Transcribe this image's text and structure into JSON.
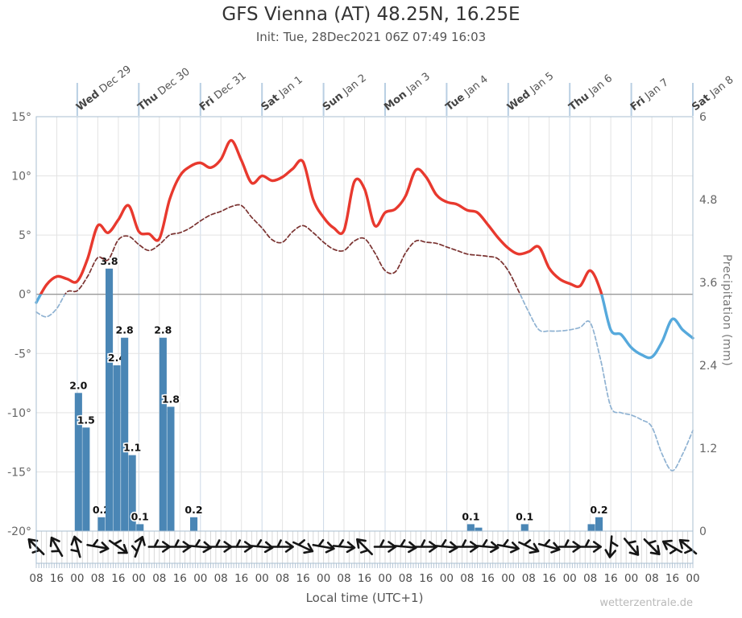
{
  "chart_data": {
    "type": "meteogram (line + bar)",
    "title": "GFS Vienna (AT) 48.25N, 16.25E",
    "subtitle": "Init: Tue, 28Dec2021 06Z 07:49 16:03",
    "watermark": "wetterzentrale.de",
    "x_axis": {
      "label": "Local time (UTC+1)",
      "hours_span": 256,
      "tick_step_hours": 8,
      "tick_labels": [
        "08",
        "16",
        "00",
        "08",
        "16",
        "00",
        "08",
        "16",
        "00",
        "08",
        "16",
        "00",
        "08",
        "16",
        "00",
        "08",
        "16",
        "00",
        "08",
        "16",
        "00",
        "08",
        "16",
        "00",
        "08",
        "16",
        "00",
        "08",
        "16",
        "00",
        "08",
        "16",
        "00"
      ],
      "day_ticks": [
        {
          "t": 16,
          "day": "Wed",
          "date": "Dec 29"
        },
        {
          "t": 40,
          "day": "Thu",
          "date": "Dec 30"
        },
        {
          "t": 64,
          "day": "Fri",
          "date": "Dec 31"
        },
        {
          "t": 88,
          "day": "Sat",
          "date": "Jan 1"
        },
        {
          "t": 112,
          "day": "Sun",
          "date": "Jan 2"
        },
        {
          "t": 136,
          "day": "Mon",
          "date": "Jan 3"
        },
        {
          "t": 160,
          "day": "Tue",
          "date": "Jan 4"
        },
        {
          "t": 184,
          "day": "Wed",
          "date": "Jan 5"
        },
        {
          "t": 208,
          "day": "Thu",
          "date": "Jan 6"
        },
        {
          "t": 232,
          "day": "Fri",
          "date": "Jan 7"
        },
        {
          "t": 256,
          "day": "Sat",
          "date": "Jan 8"
        }
      ]
    },
    "y_left": {
      "unit": "°C",
      "min": -20,
      "max": 15,
      "tick_values": [
        15,
        10,
        5,
        0,
        -5,
        -10,
        -15,
        -20
      ],
      "tick_labels": [
        "15°",
        "10°",
        "5°",
        "0°",
        "-5°",
        "-10°",
        "-15°",
        "-20°"
      ]
    },
    "y_right": {
      "label": "Precipitation (mm)",
      "min": 0,
      "max": 6,
      "tick_values": [
        6,
        4.8,
        3.6,
        2.4,
        1.2,
        0
      ],
      "tick_labels": [
        "6",
        "4.8",
        "3.6",
        "2.4",
        "1.2",
        "0"
      ]
    },
    "temperature_2m": {
      "step_hours": 4,
      "color_above_zero": "#e8392e",
      "color_below_zero": "#56a9dc",
      "values": [
        -0.7,
        0.8,
        1.5,
        1.3,
        1.1,
        3.0,
        5.8,
        5.2,
        6.3,
        7.5,
        5.3,
        5.1,
        4.7,
        8.0,
        10.0,
        10.8,
        11.1,
        10.7,
        11.4,
        13.0,
        11.3,
        9.4,
        10.0,
        9.6,
        9.9,
        10.6,
        11.2,
        8.0,
        6.5,
        5.6,
        5.4,
        9.5,
        8.9,
        5.8,
        6.9,
        7.2,
        8.3,
        10.5,
        9.9,
        8.4,
        7.8,
        7.6,
        7.1,
        6.9,
        5.9,
        4.8,
        3.9,
        3.4,
        3.6,
        4.0,
        2.2,
        1.3,
        0.9,
        0.7,
        2.0,
        0.3,
        -3.0,
        -3.4,
        -4.5,
        -5.1,
        -5.3,
        -4.0,
        -2.1,
        -3.0,
        -3.7
      ]
    },
    "dewpoint_2m": {
      "step_hours": 4,
      "style": "dashed",
      "color_above_zero": "#7a3230",
      "color_below_zero": "#8fb2d2",
      "values": [
        -1.5,
        -1.9,
        -1.2,
        0.2,
        0.3,
        1.5,
        3.1,
        2.9,
        4.6,
        4.9,
        4.2,
        3.7,
        4.2,
        5.0,
        5.2,
        5.6,
        6.2,
        6.7,
        7.0,
        7.4,
        7.5,
        6.5,
        5.6,
        4.6,
        4.4,
        5.3,
        5.8,
        5.2,
        4.4,
        3.8,
        3.7,
        4.5,
        4.7,
        3.5,
        2.0,
        1.9,
        3.5,
        4.5,
        4.4,
        4.3,
        4.0,
        3.7,
        3.4,
        3.3,
        3.2,
        3.0,
        2.0,
        0.3,
        -1.5,
        -3.0,
        -3.1,
        -3.1,
        -3.0,
        -2.8,
        -2.4,
        -5.5,
        -9.5,
        -10.0,
        -10.2,
        -10.6,
        -11.2,
        -13.5,
        -14.9,
        -13.5,
        -11.5
      ]
    },
    "precipitation": {
      "color": "#4a86b5",
      "bar_width_hours": 3,
      "bars": [
        {
          "t": 15,
          "mm": 2.0,
          "label": "2.0"
        },
        {
          "t": 18,
          "mm": 1.5,
          "label": "1.5"
        },
        {
          "t": 24,
          "mm": 0.2,
          "label": "0.2"
        },
        {
          "t": 27,
          "mm": 3.8,
          "label": "3.8"
        },
        {
          "t": 30,
          "mm": 2.4,
          "label": "2.4"
        },
        {
          "t": 33,
          "mm": 2.8,
          "label": "2.8"
        },
        {
          "t": 36,
          "mm": 1.1,
          "label": "1.1"
        },
        {
          "t": 39,
          "mm": 0.1,
          "label": "0.1"
        },
        {
          "t": 48,
          "mm": 2.8,
          "label": "2.8"
        },
        {
          "t": 51,
          "mm": 1.8,
          "label": "1.8"
        },
        {
          "t": 60,
          "mm": 0.2,
          "label": "0.2"
        },
        {
          "t": 168,
          "mm": 0.1,
          "label": "0.1"
        },
        {
          "t": 171,
          "mm": 0.05,
          "label": ""
        },
        {
          "t": 189,
          "mm": 0.1,
          "label": "0.1"
        },
        {
          "t": 215,
          "mm": 0.1,
          "label": ""
        },
        {
          "t": 218,
          "mm": 0.2,
          "label": "0.2"
        }
      ]
    },
    "wind": {
      "step_hours": 8,
      "arrow_rotations_deg": [
        -135,
        -120,
        -105,
        10,
        35,
        -70,
        0,
        0,
        5,
        0,
        0,
        5,
        0,
        25,
        10,
        5,
        -135,
        0,
        5,
        0,
        5,
        0,
        5,
        10,
        25,
        15,
        0,
        0,
        95,
        50,
        45,
        -150,
        -140
      ]
    },
    "colors": {
      "grid": "#e3e3e3",
      "day_grid": "#ccd9e7",
      "zero_line": "#999999",
      "frame": "#a9bfd2",
      "band_grid": "#d9d9d9",
      "ruler_tick": "#b7c7d7",
      "day_tick": "#b9cfe3",
      "tick_text": "#666666",
      "time_text": "#4d4d4d",
      "date_text": "#444444",
      "bar_label": "#111111"
    }
  }
}
